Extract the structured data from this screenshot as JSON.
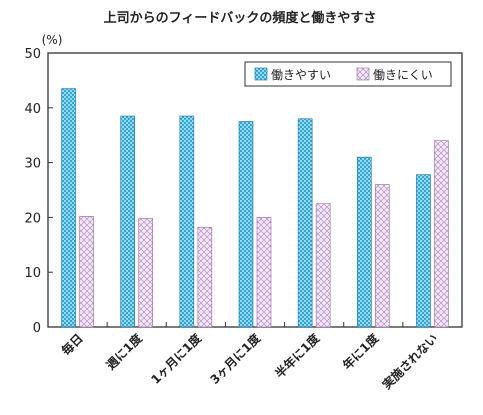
{
  "chart_data": {
    "type": "bar",
    "title": "上司からのフィードバックの頻度と働きやすさ",
    "ylabel": "(%)",
    "ylim": [
      0,
      50
    ],
    "yticks": [
      0,
      10,
      20,
      30,
      40,
      50
    ],
    "grid": false,
    "legend_position": "top-right",
    "categories": [
      "毎日",
      "週に1度",
      "1ヶ月に1度",
      "3ヶ月に1度",
      "半年に1度",
      "年に1度",
      "実施されない"
    ],
    "series": [
      {
        "name": "働きやすい",
        "values": [
          43.5,
          38.5,
          38.5,
          37.5,
          38.0,
          31.0,
          27.8
        ],
        "color": "#29a6d6",
        "pattern": "dotted-blue"
      },
      {
        "name": "働きにくい",
        "values": [
          20.2,
          19.8,
          18.2,
          20.0,
          22.5,
          26.0,
          34.0
        ],
        "color": "#dcc7e6",
        "pattern": "crosshatch-lavender"
      }
    ]
  }
}
